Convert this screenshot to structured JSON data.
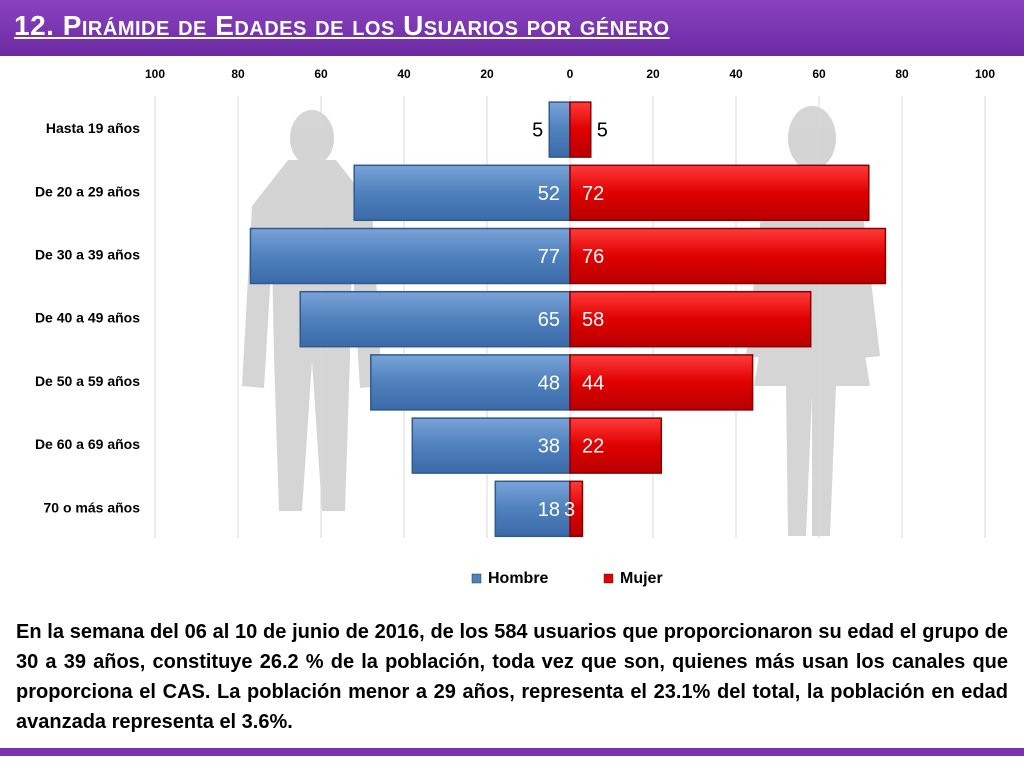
{
  "header": {
    "title": "12. Pirámide de Edades de los Usuarios por género"
  },
  "chart_data": {
    "type": "bar",
    "orientation": "horizontal",
    "categories": [
      "Hasta 19 años",
      "De 20 a 29 años",
      "De 30 a 39 años",
      "De 40 a 49 años",
      "De 50 a 59 años",
      "De 60 a 69 años",
      "70 o más años"
    ],
    "series": [
      {
        "name": "Hombre",
        "values": [
          5,
          52,
          77,
          65,
          48,
          38,
          18
        ],
        "color": "#4f81bd"
      },
      {
        "name": "Mujer",
        "values": [
          5,
          72,
          76,
          58,
          44,
          22,
          3
        ],
        "color": "#e00000"
      }
    ],
    "xticks": [
      "100",
      "80",
      "60",
      "40",
      "20",
      "0",
      "20",
      "40",
      "60",
      "80",
      "100"
    ],
    "xlim": [
      -100,
      100
    ],
    "grid": true,
    "legend": "bottom"
  },
  "description": "En la semana del 06 al 10 de junio de 2016, de los 584 usuarios  que proporcionaron su edad el grupo de 30 a 39 años,  constituye 26.2 % de la población, toda vez que son, quienes más usan los canales que proporciona el CAS. La población menor a 29 años, representa el 23.1% del total, la población en edad avanzada representa el 3.6%.",
  "colors": {
    "header": "#7030a0",
    "hombre": "#4f81bd",
    "mujer": "#e00000"
  }
}
